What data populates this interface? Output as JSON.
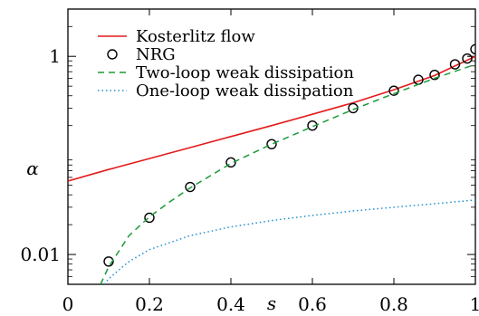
{
  "chart_data": {
    "type": "line",
    "xlabel": "s",
    "ylabel": "α",
    "xlim": [
      0,
      1
    ],
    "ylim": [
      0.005,
      3
    ],
    "yscale": "log",
    "grid": false,
    "legend_position": "top-left",
    "x_ticks": [
      {
        "value": 0,
        "label": "0"
      },
      {
        "value": 0.2,
        "label": "0.2"
      },
      {
        "value": 0.4,
        "label": "0.4"
      },
      {
        "value": 0.6,
        "label": "0.6"
      },
      {
        "value": 0.8,
        "label": "0.8"
      },
      {
        "value": 1,
        "label": "1"
      }
    ],
    "y_ticks": [
      {
        "value": 0.01,
        "label": "0.01"
      },
      {
        "value": 1,
        "label": "1"
      }
    ],
    "series": [
      {
        "name": "Kosterlitz flow",
        "style": "solid",
        "color": "#e41a1c",
        "x": [
          0,
          0.1,
          0.2,
          0.3,
          0.4,
          0.5,
          0.6,
          0.7,
          0.8,
          0.9,
          1.0
        ],
        "y": [
          0.055,
          0.072,
          0.093,
          0.12,
          0.155,
          0.2,
          0.26,
          0.34,
          0.46,
          0.64,
          1.0
        ]
      },
      {
        "name": "NRG",
        "style": "markers",
        "color": "#000000",
        "x": [
          0.1,
          0.2,
          0.3,
          0.4,
          0.5,
          0.6,
          0.7,
          0.8,
          0.86,
          0.9,
          0.95,
          0.98,
          1.0
        ],
        "y": [
          0.0085,
          0.0235,
          0.048,
          0.085,
          0.13,
          0.2,
          0.3,
          0.45,
          0.58,
          0.65,
          0.83,
          0.95,
          1.18
        ]
      },
      {
        "name": "Two-loop weak dissipation",
        "style": "dashed",
        "color": "#1a9a3a",
        "x": [
          0.08,
          0.1,
          0.15,
          0.2,
          0.25,
          0.3,
          0.4,
          0.5,
          0.6,
          0.7,
          0.8,
          0.9,
          1.0
        ],
        "y": [
          0.005,
          0.0075,
          0.0155,
          0.024,
          0.034,
          0.047,
          0.083,
          0.13,
          0.195,
          0.29,
          0.42,
          0.6,
          0.83
        ]
      },
      {
        "name": "One-loop weak dissipation",
        "style": "dotted",
        "color": "#1f8fd0",
        "x": [
          0.09,
          0.1,
          0.15,
          0.2,
          0.3,
          0.4,
          0.5,
          0.6,
          0.7,
          0.8,
          0.9,
          1.0
        ],
        "y": [
          0.005,
          0.0057,
          0.0085,
          0.0112,
          0.0155,
          0.019,
          0.022,
          0.0248,
          0.0275,
          0.03,
          0.0325,
          0.0355
        ]
      }
    ]
  }
}
